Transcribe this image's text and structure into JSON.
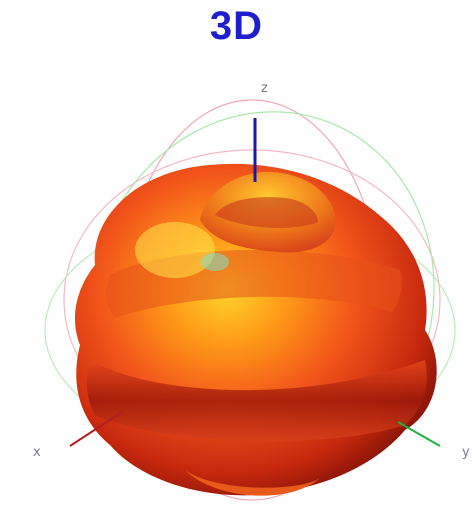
{
  "title": "3D",
  "axes": {
    "z_label": "z",
    "x_label": "x",
    "y_label": "y"
  },
  "colors": {
    "title": "#1f1ecf",
    "z_axis": "#1a1aa0",
    "x_axis": "#b02020",
    "y_axis": "#20b040",
    "pattern_dark": "#a01a0a",
    "pattern_mid": "#f04a10",
    "pattern_light": "#ffe020"
  }
}
